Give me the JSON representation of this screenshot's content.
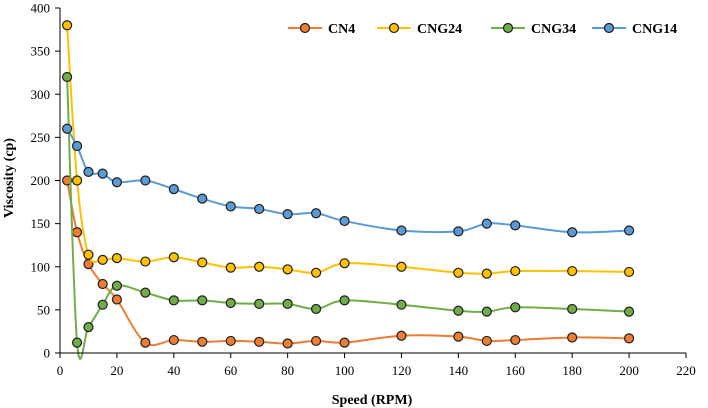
{
  "chart_data": {
    "type": "line",
    "title": "",
    "xlabel": "Speed (RPM)",
    "ylabel": "Viscosity (cp)",
    "xlim": [
      0,
      220
    ],
    "ylim": [
      0,
      400
    ],
    "xticks": [
      0,
      20,
      40,
      60,
      80,
      100,
      120,
      140,
      160,
      180,
      200,
      220
    ],
    "yticks": [
      0,
      50,
      100,
      150,
      200,
      250,
      300,
      350,
      400
    ],
    "grid": false,
    "legend_position": "top-right",
    "series": [
      {
        "name": "CN4",
        "color": "#ED7D31",
        "x": [
          2.5,
          6,
          10,
          15,
          20,
          30,
          40,
          50,
          60,
          70,
          80,
          90,
          100,
          120,
          140,
          150,
          160,
          180,
          200
        ],
        "y": [
          200,
          140,
          103,
          80,
          62,
          12,
          15,
          13,
          14,
          13,
          11,
          14,
          12,
          20,
          19,
          14,
          15,
          18,
          17
        ]
      },
      {
        "name": "CNG24",
        "color": "#FFC000",
        "x": [
          2.5,
          6,
          10,
          15,
          20,
          30,
          40,
          50,
          60,
          70,
          80,
          90,
          100,
          120,
          140,
          150,
          160,
          180,
          200
        ],
        "y": [
          380,
          200,
          114,
          108,
          110,
          106,
          111,
          105,
          99,
          100,
          97,
          93,
          104,
          100,
          93,
          92,
          95,
          95,
          94
        ]
      },
      {
        "name": "CNG34",
        "color": "#70AD47",
        "x": [
          2.5,
          6,
          10,
          15,
          20,
          30,
          40,
          50,
          60,
          70,
          80,
          90,
          100,
          120,
          140,
          150,
          160,
          180,
          200
        ],
        "y": [
          320,
          12,
          30,
          56,
          78,
          70,
          61,
          61,
          58,
          57,
          57,
          51,
          61,
          56,
          49,
          48,
          53,
          51,
          48
        ]
      },
      {
        "name": "CNG14",
        "color": "#5B9BD5",
        "x": [
          2.5,
          6,
          10,
          15,
          20,
          30,
          40,
          50,
          60,
          70,
          80,
          90,
          100,
          120,
          140,
          150,
          160,
          180,
          200
        ],
        "y": [
          260,
          240,
          210,
          208,
          198,
          200,
          190,
          179,
          170,
          167,
          161,
          162,
          153,
          142,
          141,
          150,
          148,
          140,
          142
        ]
      }
    ]
  }
}
